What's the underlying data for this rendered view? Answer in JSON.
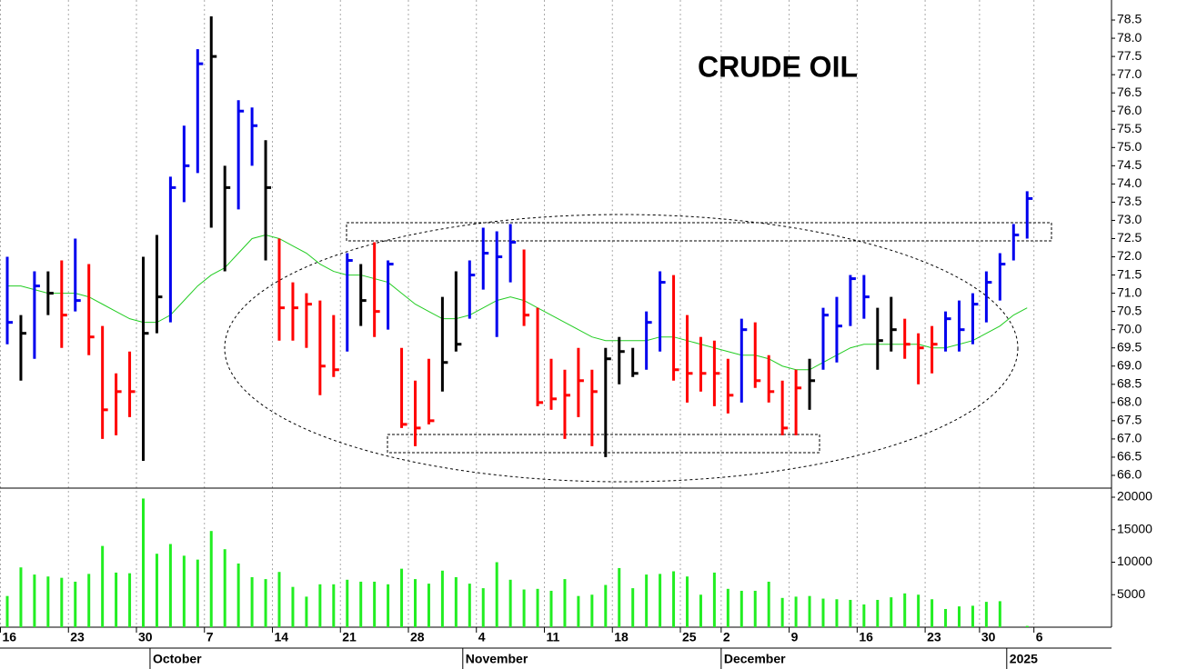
{
  "chart_data": [
    {
      "type": "ohlc",
      "title": "CRUDE OIL",
      "categories": [
        "16",
        null,
        null,
        null,
        null,
        "23",
        null,
        null,
        null,
        null,
        "30",
        null,
        null,
        null,
        null,
        "7",
        null,
        null,
        null,
        null,
        "14",
        null,
        null,
        null,
        null,
        "21",
        null,
        null,
        null,
        null,
        "28",
        null,
        null,
        null,
        null,
        "4",
        null,
        null,
        null,
        null,
        "11",
        null,
        null,
        null,
        null,
        "18",
        null,
        null,
        null,
        null,
        "25",
        null,
        null,
        "2",
        null,
        null,
        null,
        null,
        "9",
        null,
        null,
        null,
        null,
        "16",
        null,
        null,
        null,
        null,
        "23",
        null,
        null,
        null,
        "30",
        null,
        null,
        null,
        "6"
      ],
      "months": [
        null,
        null,
        null,
        null,
        null,
        null,
        null,
        null,
        null,
        null,
        null,
        "October",
        null,
        null,
        null,
        null,
        null,
        null,
        null,
        null,
        null,
        null,
        null,
        null,
        null,
        null,
        null,
        null,
        null,
        null,
        null,
        null,
        null,
        null,
        "November",
        null,
        null,
        null,
        null,
        null,
        null,
        null,
        null,
        null,
        null,
        null,
        null,
        null,
        null,
        null,
        null,
        null,
        null,
        "December",
        null,
        null,
        null,
        null,
        null,
        null,
        null,
        null,
        null,
        null,
        null,
        null,
        null,
        null,
        null,
        null,
        null,
        null,
        null,
        null,
        "2025",
        null,
        null
      ],
      "high": [
        72.0,
        70.4,
        71.6,
        71.6,
        71.9,
        72.5,
        71.8,
        70.1,
        68.8,
        69.4,
        72.0,
        72.6,
        74.2,
        75.6,
        77.7,
        78.6,
        74.5,
        76.3,
        76.1,
        75.2,
        72.5,
        71.3,
        71.0,
        70.8,
        70.4,
        72.1,
        71.8,
        72.4,
        71.9,
        69.5,
        68.6,
        69.2,
        70.9,
        71.6,
        71.9,
        72.8,
        72.7,
        72.9,
        72.2,
        70.6,
        69.2,
        68.9,
        69.5,
        68.9,
        69.5,
        69.8,
        69.5,
        70.5,
        71.6,
        71.5,
        70.4,
        69.8,
        69.7,
        69.2,
        70.3,
        70.2,
        69.3,
        68.6,
        68.9,
        69.2,
        70.6,
        70.9,
        71.5,
        71.5,
        70.6,
        70.9,
        70.3,
        69.9,
        70.1,
        70.5,
        70.8,
        71.0,
        71.6,
        72.1,
        72.9,
        73.8,
        null
      ],
      "low": [
        69.6,
        68.6,
        69.2,
        70.4,
        69.5,
        70.5,
        69.3,
        67.0,
        67.1,
        67.6,
        66.4,
        69.9,
        70.2,
        73.5,
        74.3,
        72.8,
        71.6,
        73.3,
        74.5,
        71.9,
        69.7,
        69.7,
        69.5,
        68.2,
        68.7,
        69.4,
        70.1,
        69.8,
        70.0,
        67.3,
        66.8,
        67.4,
        68.3,
        69.4,
        70.3,
        71.1,
        69.8,
        71.3,
        70.1,
        67.9,
        67.8,
        67.0,
        67.6,
        66.8,
        66.5,
        68.5,
        68.7,
        68.9,
        69.4,
        68.6,
        68.0,
        68.3,
        67.9,
        67.7,
        68.0,
        68.4,
        68.0,
        67.1,
        67.1,
        67.8,
        68.9,
        69.1,
        70.1,
        70.3,
        68.9,
        69.4,
        69.2,
        68.5,
        68.8,
        69.4,
        69.4,
        69.6,
        70.2,
        70.8,
        71.9,
        72.5,
        null
      ],
      "close": [
        70.2,
        69.9,
        71.2,
        71.0,
        70.4,
        70.8,
        69.8,
        67.8,
        68.3,
        68.3,
        69.9,
        70.9,
        73.9,
        74.5,
        77.3,
        77.5,
        73.9,
        76.0,
        75.6,
        73.9,
        70.6,
        70.6,
        70.7,
        69.0,
        68.9,
        71.9,
        70.8,
        70.5,
        71.8,
        67.4,
        67.3,
        67.5,
        69.1,
        69.6,
        71.5,
        72.1,
        72.0,
        72.4,
        70.4,
        68.0,
        68.1,
        68.2,
        68.6,
        68.3,
        69.2,
        69.4,
        68.8,
        70.2,
        71.3,
        68.9,
        68.8,
        68.8,
        68.8,
        68.2,
        70.0,
        68.6,
        68.3,
        67.3,
        68.4,
        68.6,
        70.4,
        70.1,
        71.4,
        70.9,
        69.7,
        70.0,
        69.6,
        69.5,
        69.6,
        70.3,
        70.0,
        70.7,
        71.3,
        71.8,
        72.6,
        73.6,
        null
      ],
      "bar_colors": [
        "#0000ee",
        "#000000",
        "#0000ee",
        "#000000",
        "#ff0000",
        "#0000ee",
        "#ff0000",
        "#ff0000",
        "#ff0000",
        "#ff0000",
        "#000000",
        "#000000",
        "#0000ee",
        "#0000ee",
        "#0000ee",
        "#000000",
        "#000000",
        "#0000ee",
        "#0000ee",
        "#000000",
        "#ff0000",
        "#ff0000",
        "#ff0000",
        "#ff0000",
        "#ff0000",
        "#0000ee",
        "#000000",
        "#ff0000",
        "#0000ee",
        "#ff0000",
        "#ff0000",
        "#ff0000",
        "#000000",
        "#000000",
        "#0000ee",
        "#0000ee",
        "#0000ee",
        "#0000ee",
        "#ff0000",
        "#ff0000",
        "#ff0000",
        "#ff0000",
        "#ff0000",
        "#ff0000",
        "#000000",
        "#000000",
        "#000000",
        "#0000ee",
        "#0000ee",
        "#ff0000",
        "#ff0000",
        "#ff0000",
        "#ff0000",
        "#ff0000",
        "#0000ee",
        "#ff0000",
        "#ff0000",
        "#ff0000",
        "#ff0000",
        "#000000",
        "#0000ee",
        "#0000ee",
        "#0000ee",
        "#0000ee",
        "#000000",
        "#000000",
        "#ff0000",
        "#ff0000",
        "#ff0000",
        "#0000ee",
        "#0000ee",
        "#0000ee",
        "#0000ee",
        "#0000ee",
        "#0000ee",
        "#0000ee",
        null
      ],
      "ma_color": "#22cc22",
      "ma_values": [
        71.2,
        71.2,
        71.1,
        71.0,
        71.0,
        71.0,
        70.9,
        70.7,
        70.5,
        70.3,
        70.2,
        70.2,
        70.4,
        70.8,
        71.2,
        71.5,
        71.7,
        72.1,
        72.5,
        72.6,
        72.5,
        72.3,
        72.1,
        71.8,
        71.6,
        71.5,
        71.5,
        71.4,
        71.3,
        71.0,
        70.7,
        70.5,
        70.3,
        70.3,
        70.4,
        70.6,
        70.8,
        70.9,
        70.8,
        70.6,
        70.4,
        70.2,
        70.0,
        69.8,
        69.7,
        69.7,
        69.7,
        69.7,
        69.8,
        69.8,
        69.7,
        69.6,
        69.5,
        69.4,
        69.3,
        69.3,
        69.2,
        69.0,
        68.9,
        68.9,
        69.1,
        69.3,
        69.5,
        69.6,
        69.6,
        69.6,
        69.6,
        69.6,
        69.5,
        69.5,
        69.6,
        69.7,
        69.9,
        70.1,
        70.4,
        70.6,
        null
      ],
      "ylim": [
        65.65,
        79.05
      ],
      "yticks": [
        {
          "value": 66,
          "label": "66.0"
        },
        {
          "value": 66.5,
          "label": "66.5"
        },
        {
          "value": 67,
          "label": "67.0"
        },
        {
          "value": 67.5,
          "label": "67.5"
        },
        {
          "value": 68,
          "label": "68.0"
        },
        {
          "value": 68.5,
          "label": "68.5"
        },
        {
          "value": 69,
          "label": "69.0"
        },
        {
          "value": 69.5,
          "label": "69.5"
        },
        {
          "value": 70,
          "label": "70.0"
        },
        {
          "value": 70.5,
          "label": "70.5"
        },
        {
          "value": 71,
          "label": "71.0"
        },
        {
          "value": 71.5,
          "label": "71.5"
        },
        {
          "value": 72,
          "label": "72.0"
        },
        {
          "value": 72.5,
          "label": "72.5"
        },
        {
          "value": 73,
          "label": "73.0"
        },
        {
          "value": 73.5,
          "label": "73.5"
        },
        {
          "value": 74,
          "label": "74.0"
        },
        {
          "value": 74.5,
          "label": "74.5"
        },
        {
          "value": 75,
          "label": "75.0"
        },
        {
          "value": 75.5,
          "label": "75.5"
        },
        {
          "value": 76,
          "label": "76.0"
        },
        {
          "value": 76.5,
          "label": "76.5"
        },
        {
          "value": 77,
          "label": "77.0"
        },
        {
          "value": 77.5,
          "label": "77.5"
        },
        {
          "value": 78,
          "label": "78.0"
        },
        {
          "value": 78.5,
          "label": "78.5"
        }
      ]
    },
    {
      "type": "bar",
      "color": "#22ee22",
      "values": [
        4800,
        9200,
        8100,
        7800,
        7600,
        7000,
        8200,
        12500,
        8400,
        8300,
        19800,
        11300,
        12800,
        11000,
        10400,
        14800,
        12000,
        9800,
        7700,
        7400,
        8500,
        6200,
        4700,
        6600,
        6600,
        7300,
        7000,
        7000,
        6600,
        9000,
        7400,
        6700,
        8700,
        7700,
        6700,
        6000,
        10000,
        7300,
        5800,
        5900,
        5600,
        7400,
        4800,
        5000,
        6500,
        9100,
        6000,
        8100,
        8200,
        8600,
        7800,
        5000,
        8400,
        5900,
        5600,
        5600,
        7000,
        4500,
        4700,
        4800,
        4400,
        4300,
        4200,
        3500,
        4200,
        4600,
        5200,
        5000,
        4300,
        2800,
        3200,
        3300,
        3900,
        4000,
        null,
        200,
        null
      ],
      "ylim": [
        0,
        21400
      ],
      "yticks": [
        5000,
        10000,
        15000,
        20000
      ]
    }
  ]
}
